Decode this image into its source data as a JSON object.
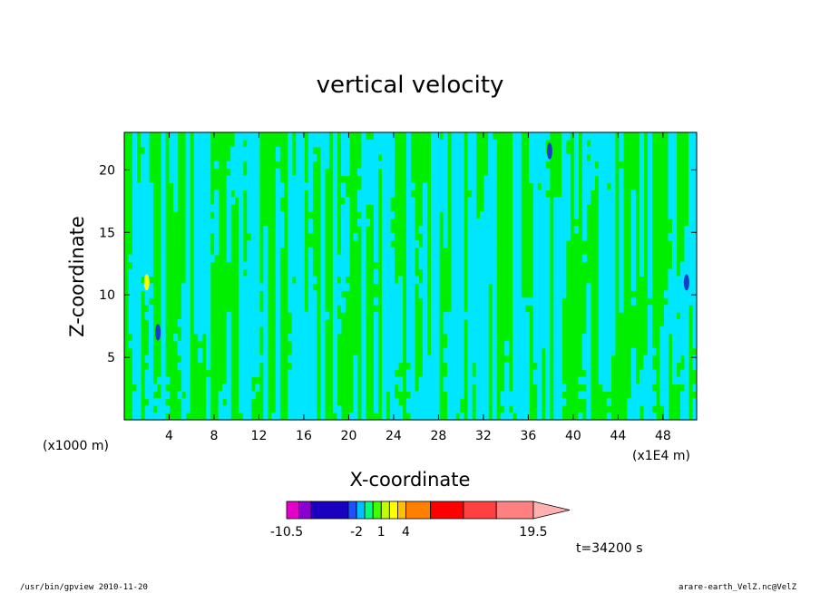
{
  "chart_data": {
    "type": "heatmap",
    "title": "vertical velocity",
    "xlabel": "X-coordinate",
    "ylabel": "Z-coordinate",
    "x_unit_left": "(x1000 m)",
    "x_unit_right": "(x1E4 m)",
    "xlim": [
      0,
      51
    ],
    "ylim": [
      0,
      23
    ],
    "x_ticks": [
      "4",
      "8",
      "12",
      "16",
      "20",
      "24",
      "28",
      "32",
      "36",
      "40",
      "44",
      "48"
    ],
    "y_ticks": [
      "5",
      "10",
      "15",
      "20"
    ],
    "colorbar": {
      "levels": [
        -10.5,
        -9,
        -7.5,
        -3,
        -2,
        -1,
        0,
        1,
        2,
        3,
        4,
        7,
        11,
        15,
        19.5
      ],
      "labels": [
        "-10.5",
        "-2",
        "1",
        "4",
        "19.5"
      ],
      "colors": [
        "#e400c8",
        "#8a00d0",
        "#1b00c0",
        "#1e50ff",
        "#00c0ff",
        "#00ff7f",
        "#40ff00",
        "#c0ff00",
        "#ffff00",
        "#ffc000",
        "#ff8000",
        "#ff0000",
        "#ff4040",
        "#ff8080",
        "#ffb0b0"
      ]
    },
    "field_colors": {
      "negative": "#00e6ff",
      "positive": "#00ee00",
      "strong_neg": "#1b3cc8",
      "strong_pos": "#ffff00"
    },
    "time": "t=34200 s"
  },
  "footer": {
    "left": "/usr/bin/gpview  2010-11-20",
    "right": "arare-earth_VelZ.nc@VelZ"
  }
}
